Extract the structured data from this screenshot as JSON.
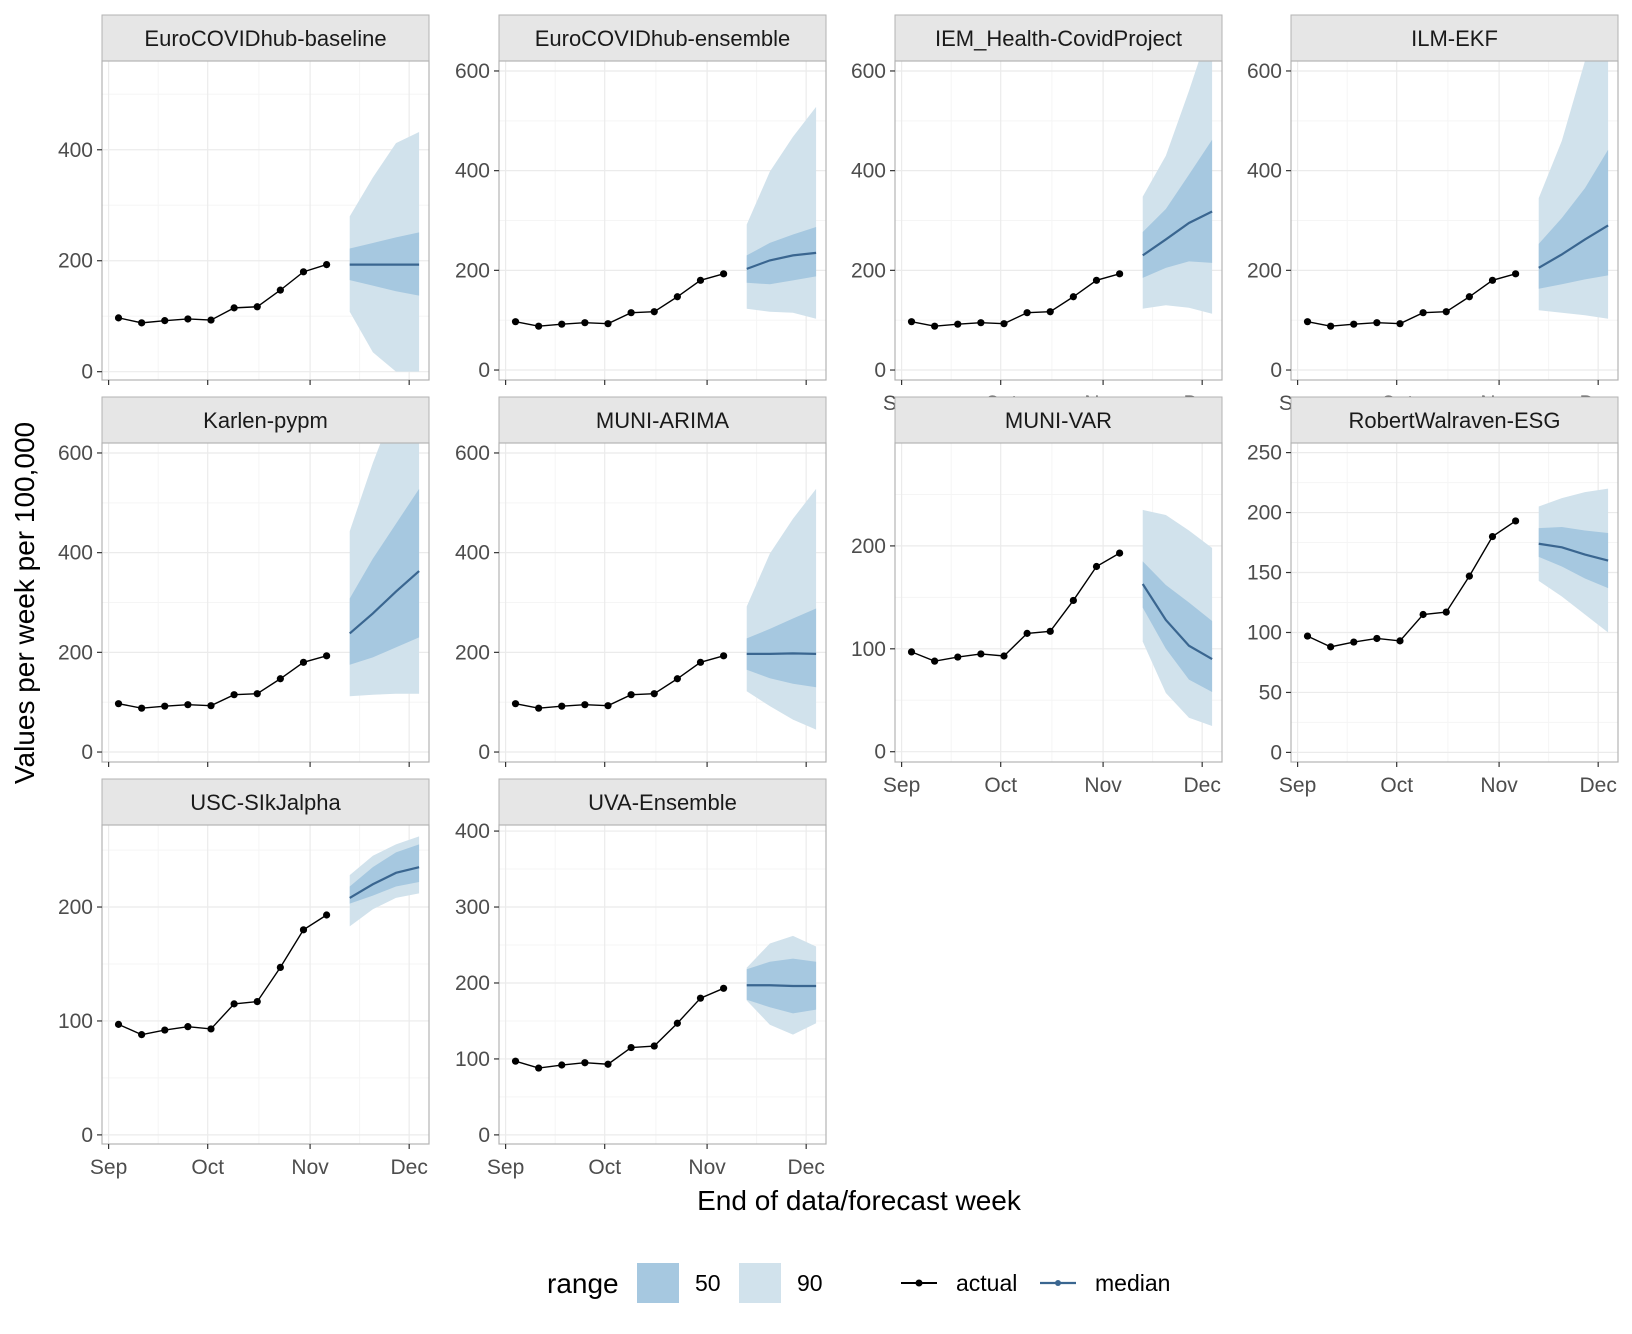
{
  "colors": {
    "band90": "#d1e2ec",
    "band50": "#a6c8e0",
    "median": "#3a6690",
    "actual": "#000000",
    "strip_bg": "#e6e6e6",
    "grid_major": "#ebebeb",
    "grid_minor": "#f5f5f5",
    "panel_border": "#b3b3b3"
  },
  "axes": {
    "x_title": "End of data/forecast week",
    "y_title": "Values per week per 100,000",
    "x_tick_labels": [
      "Sep",
      "Oct",
      "Nov",
      "Dec"
    ],
    "x_tick_dates": [
      "2021-09-01",
      "2021-10-01",
      "2021-11-01",
      "2021-12-01"
    ]
  },
  "legend": {
    "range_title": "range",
    "range_50_label": "50",
    "range_90_label": "90",
    "actual_label": "actual",
    "median_label": "median"
  },
  "chart_data": {
    "type": "line",
    "facets": true,
    "x_range": [
      "2021-08-30",
      "2021-12-07"
    ],
    "actual": {
      "x": [
        "2021-09-04",
        "2021-09-11",
        "2021-09-18",
        "2021-09-25",
        "2021-10-02",
        "2021-10-09",
        "2021-10-16",
        "2021-10-23",
        "2021-10-30",
        "2021-11-06"
      ],
      "y": [
        97,
        88,
        92,
        95,
        93,
        115,
        117,
        147,
        180,
        193
      ]
    },
    "forecast_x": [
      "2021-11-13",
      "2021-11-20",
      "2021-11-27",
      "2021-12-04"
    ],
    "panels": [
      {
        "name": "EuroCOVIDhub-baseline",
        "ylim": [
          -15,
          560
        ],
        "yticks": [
          0,
          200,
          400
        ],
        "median": [
          193,
          193,
          193,
          193
        ],
        "lo50": [
          165,
          155,
          145,
          137
        ],
        "hi50": [
          222,
          232,
          242,
          251
        ],
        "lo90": [
          108,
          35,
          0,
          0
        ],
        "hi90": [
          280,
          350,
          412,
          432
        ]
      },
      {
        "name": "EuroCOVIDhub-ensemble",
        "ylim": [
          -20,
          620
        ],
        "yticks": [
          0,
          200,
          400,
          600
        ],
        "median": [
          203,
          220,
          230,
          235
        ],
        "lo50": [
          175,
          172,
          180,
          188
        ],
        "hi50": [
          230,
          255,
          272,
          287
        ],
        "lo90": [
          123,
          117,
          115,
          103
        ],
        "hi90": [
          292,
          398,
          468,
          528
        ]
      },
      {
        "name": "IEM_Health-CovidProject",
        "ylim": [
          -20,
          620
        ],
        "yticks": [
          0,
          200,
          400,
          600
        ],
        "median": [
          230,
          262,
          295,
          318
        ],
        "lo50": [
          185,
          205,
          218,
          215
        ],
        "hi50": [
          277,
          323,
          392,
          462
        ],
        "hi50_clip": false,
        "lo90": [
          123,
          130,
          125,
          113
        ],
        "hi90": [
          348,
          430,
          560,
          700
        ]
      },
      {
        "name": "ILM-EKF",
        "ylim": [
          -20,
          620
        ],
        "yticks": [
          0,
          200,
          400,
          600
        ],
        "median": [
          205,
          232,
          262,
          290
        ],
        "lo50": [
          163,
          172,
          182,
          190
        ],
        "hi50": [
          253,
          305,
          365,
          442
        ],
        "lo90": [
          120,
          115,
          110,
          103
        ],
        "hi90": [
          345,
          460,
          620,
          700
        ]
      },
      {
        "name": "Karlen-pypm",
        "ylim": [
          -20,
          620
        ],
        "yticks": [
          0,
          200,
          400,
          600
        ],
        "median": [
          238,
          278,
          322,
          363
        ],
        "lo50": [
          175,
          190,
          210,
          230
        ],
        "hi50": [
          308,
          388,
          458,
          528
        ],
        "lo90": [
          112,
          115,
          117,
          117
        ],
        "hi90": [
          443,
          580,
          700,
          700
        ]
      },
      {
        "name": "MUNI-ARIMA",
        "ylim": [
          -20,
          620
        ],
        "yticks": [
          0,
          200,
          400,
          600
        ],
        "median": [
          197,
          197,
          198,
          197
        ],
        "lo50": [
          165,
          148,
          137,
          130
        ],
        "hi50": [
          228,
          247,
          268,
          288
        ],
        "lo90": [
          122,
          92,
          65,
          45
        ],
        "hi90": [
          292,
          398,
          468,
          528
        ]
      },
      {
        "name": "MUNI-VAR",
        "ylim": [
          -10,
          300
        ],
        "yticks": [
          0,
          100,
          200
        ],
        "median": [
          163,
          128,
          103,
          90
        ],
        "lo50": [
          140,
          100,
          70,
          58
        ],
        "hi50": [
          185,
          162,
          145,
          127
        ],
        "lo90": [
          107,
          57,
          33,
          25
        ],
        "hi90": [
          235,
          230,
          215,
          198
        ]
      },
      {
        "name": "RobertWalraven-ESG",
        "ylim": [
          -8,
          258
        ],
        "yticks": [
          0,
          50,
          100,
          150,
          200,
          250
        ],
        "median": [
          174,
          171,
          165,
          160
        ],
        "lo50": [
          163,
          155,
          145,
          137
        ],
        "hi50": [
          187,
          188,
          185,
          183
        ],
        "lo90": [
          143,
          130,
          115,
          100
        ],
        "hi90": [
          205,
          212,
          217,
          220
        ]
      },
      {
        "name": "USC-SIkJalpha",
        "ylim": [
          -8,
          272
        ],
        "yticks": [
          0,
          100,
          200
        ],
        "median": [
          208,
          220,
          230,
          235
        ],
        "lo50": [
          203,
          210,
          218,
          222
        ],
        "hi50": [
          218,
          235,
          248,
          255
        ],
        "lo90": [
          183,
          198,
          208,
          212
        ],
        "hi90": [
          228,
          245,
          255,
          262
        ]
      },
      {
        "name": "UVA-Ensemble",
        "ylim": [
          -12,
          408
        ],
        "yticks": [
          0,
          100,
          200,
          300,
          400
        ],
        "median": [
          197,
          197,
          196,
          196
        ],
        "lo50": [
          178,
          168,
          160,
          165
        ],
        "hi50": [
          218,
          228,
          232,
          228
        ],
        "lo90": [
          177,
          145,
          132,
          147
        ],
        "hi90": [
          220,
          252,
          262,
          248
        ]
      }
    ]
  }
}
